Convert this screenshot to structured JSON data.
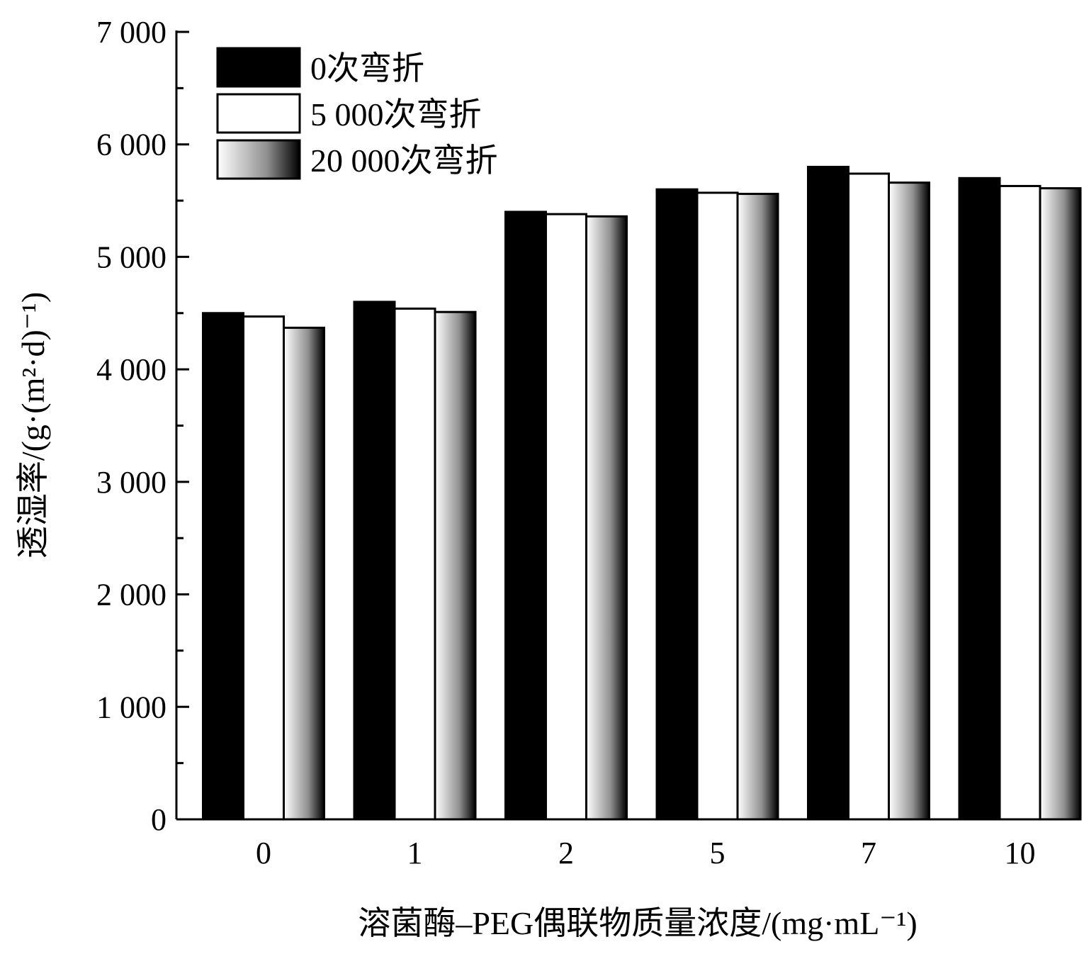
{
  "chart_data": {
    "type": "bar",
    "title": "",
    "xlabel": "溶菌酶–PEG偶联物质量浓度/(mg·mL⁻¹)",
    "ylabel": "透湿率/(g·(m²·d)⁻¹)",
    "categories": [
      "0",
      "1",
      "2",
      "5",
      "7",
      "10"
    ],
    "ylim": [
      0,
      7000
    ],
    "yticks": [
      0,
      1000,
      2000,
      3000,
      4000,
      5000,
      6000,
      7000
    ],
    "ytick_labels": [
      "0",
      "1 000",
      "2 000",
      "3 000",
      "4 000",
      "5 000",
      "6 000",
      "7 000"
    ],
    "grid": false,
    "legend_position": "top-left",
    "series": [
      {
        "name": "0次弯折",
        "fill": "solid-black",
        "color": "#000000",
        "values": [
          4500,
          4600,
          5400,
          5600,
          5800,
          5700
        ]
      },
      {
        "name": "5 000次弯折",
        "fill": "white",
        "color": "#ffffff",
        "values": [
          4470,
          4540,
          5380,
          5570,
          5740,
          5630
        ]
      },
      {
        "name": "20 000次弯折",
        "fill": "gradient-white-to-black",
        "color": "#808080",
        "values": [
          4370,
          4510,
          5360,
          5560,
          5660,
          5610
        ]
      }
    ]
  }
}
